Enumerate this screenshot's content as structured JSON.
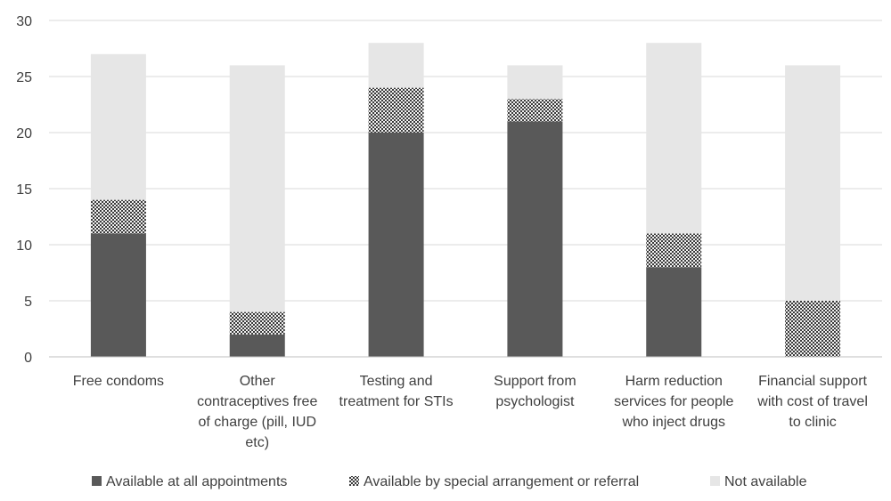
{
  "chart_data": {
    "type": "bar",
    "stacked": true,
    "categories": [
      [
        "Free condoms"
      ],
      [
        "Other",
        "contraceptives free",
        "of charge (pill, IUD",
        "etc)"
      ],
      [
        "Testing and",
        "treatment for STIs"
      ],
      [
        "Support from",
        "psychologist"
      ],
      [
        "Harm reduction",
        "services for people",
        "who inject drugs"
      ],
      [
        "Financial support",
        "with cost of travel",
        "to clinic"
      ]
    ],
    "series": [
      {
        "name": "Available at all appointments",
        "values": [
          11,
          2,
          20,
          21,
          8,
          0
        ],
        "color": "#595959",
        "pattern": "solid"
      },
      {
        "name": "Available by special arrangement or referral",
        "values": [
          3,
          2,
          4,
          2,
          3,
          5
        ],
        "color": "#3a3a3a",
        "pattern": "checker"
      },
      {
        "name": "Not available",
        "values": [
          13,
          22,
          4,
          3,
          17,
          21
        ],
        "color": "#e6e6e6",
        "pattern": "solid"
      }
    ],
    "ylim": [
      0,
      30
    ],
    "yticks": [
      0,
      5,
      10,
      15,
      20,
      25,
      30
    ],
    "grid": true,
    "legend_position": "bottom"
  }
}
